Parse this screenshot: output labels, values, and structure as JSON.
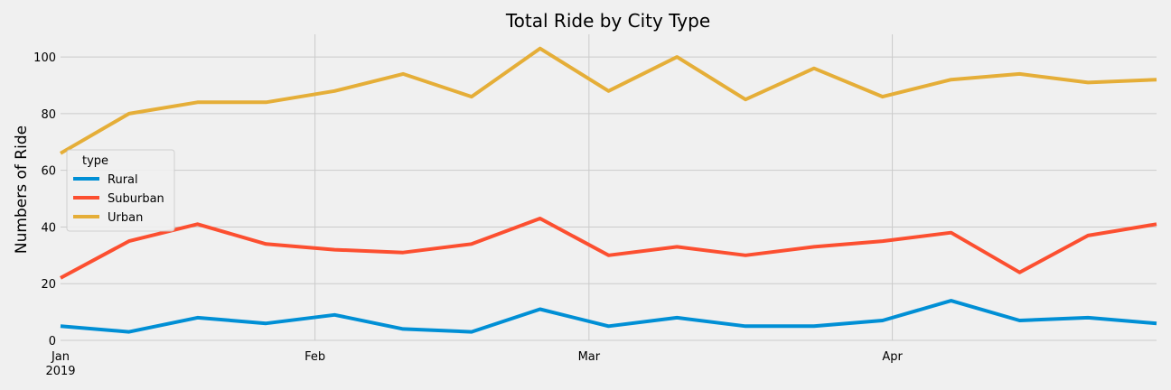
{
  "chart_data": {
    "type": "line",
    "title": "Total Ride by City Type",
    "xlabel": "",
    "ylabel": "Numbers of Ride",
    "x": [
      "2019-01-06",
      "2019-01-13",
      "2019-01-20",
      "2019-01-27",
      "2019-02-03",
      "2019-02-10",
      "2019-02-17",
      "2019-02-24",
      "2019-03-03",
      "2019-03-10",
      "2019-03-17",
      "2019-03-24",
      "2019-03-31",
      "2019-04-07",
      "2019-04-14",
      "2019-04-21",
      "2019-04-28"
    ],
    "xlim": [
      "2019-01-06",
      "2019-04-28"
    ],
    "x_ticks": [
      {
        "date": "2019-01-01",
        "label": "Jan",
        "sublabel": "2019"
      },
      {
        "date": "2019-02-01",
        "label": "Feb",
        "sublabel": ""
      },
      {
        "date": "2019-03-01",
        "label": "Mar",
        "sublabel": ""
      },
      {
        "date": "2019-04-01",
        "label": "Apr",
        "sublabel": ""
      }
    ],
    "ylim": [
      0,
      108
    ],
    "y_ticks": [
      0,
      20,
      40,
      60,
      80,
      100
    ],
    "grid": true,
    "legend": {
      "title": "type",
      "placement": "center-left"
    },
    "series": [
      {
        "name": "Rural",
        "color": "#008fd5",
        "values": [
          5,
          3,
          8,
          6,
          9,
          4,
          3,
          11,
          5,
          8,
          5,
          5,
          7,
          14,
          7,
          8,
          6
        ]
      },
      {
        "name": "Suburban",
        "color": "#fc4f30",
        "values": [
          22,
          35,
          41,
          34,
          32,
          31,
          34,
          43,
          30,
          33,
          30,
          33,
          35,
          38,
          24,
          37,
          41
        ]
      },
      {
        "name": "Urban",
        "color": "#e5ae38",
        "values": [
          66,
          80,
          84,
          84,
          88,
          94,
          86,
          103,
          88,
          100,
          85,
          96,
          86,
          92,
          94,
          91,
          92
        ]
      }
    ]
  }
}
